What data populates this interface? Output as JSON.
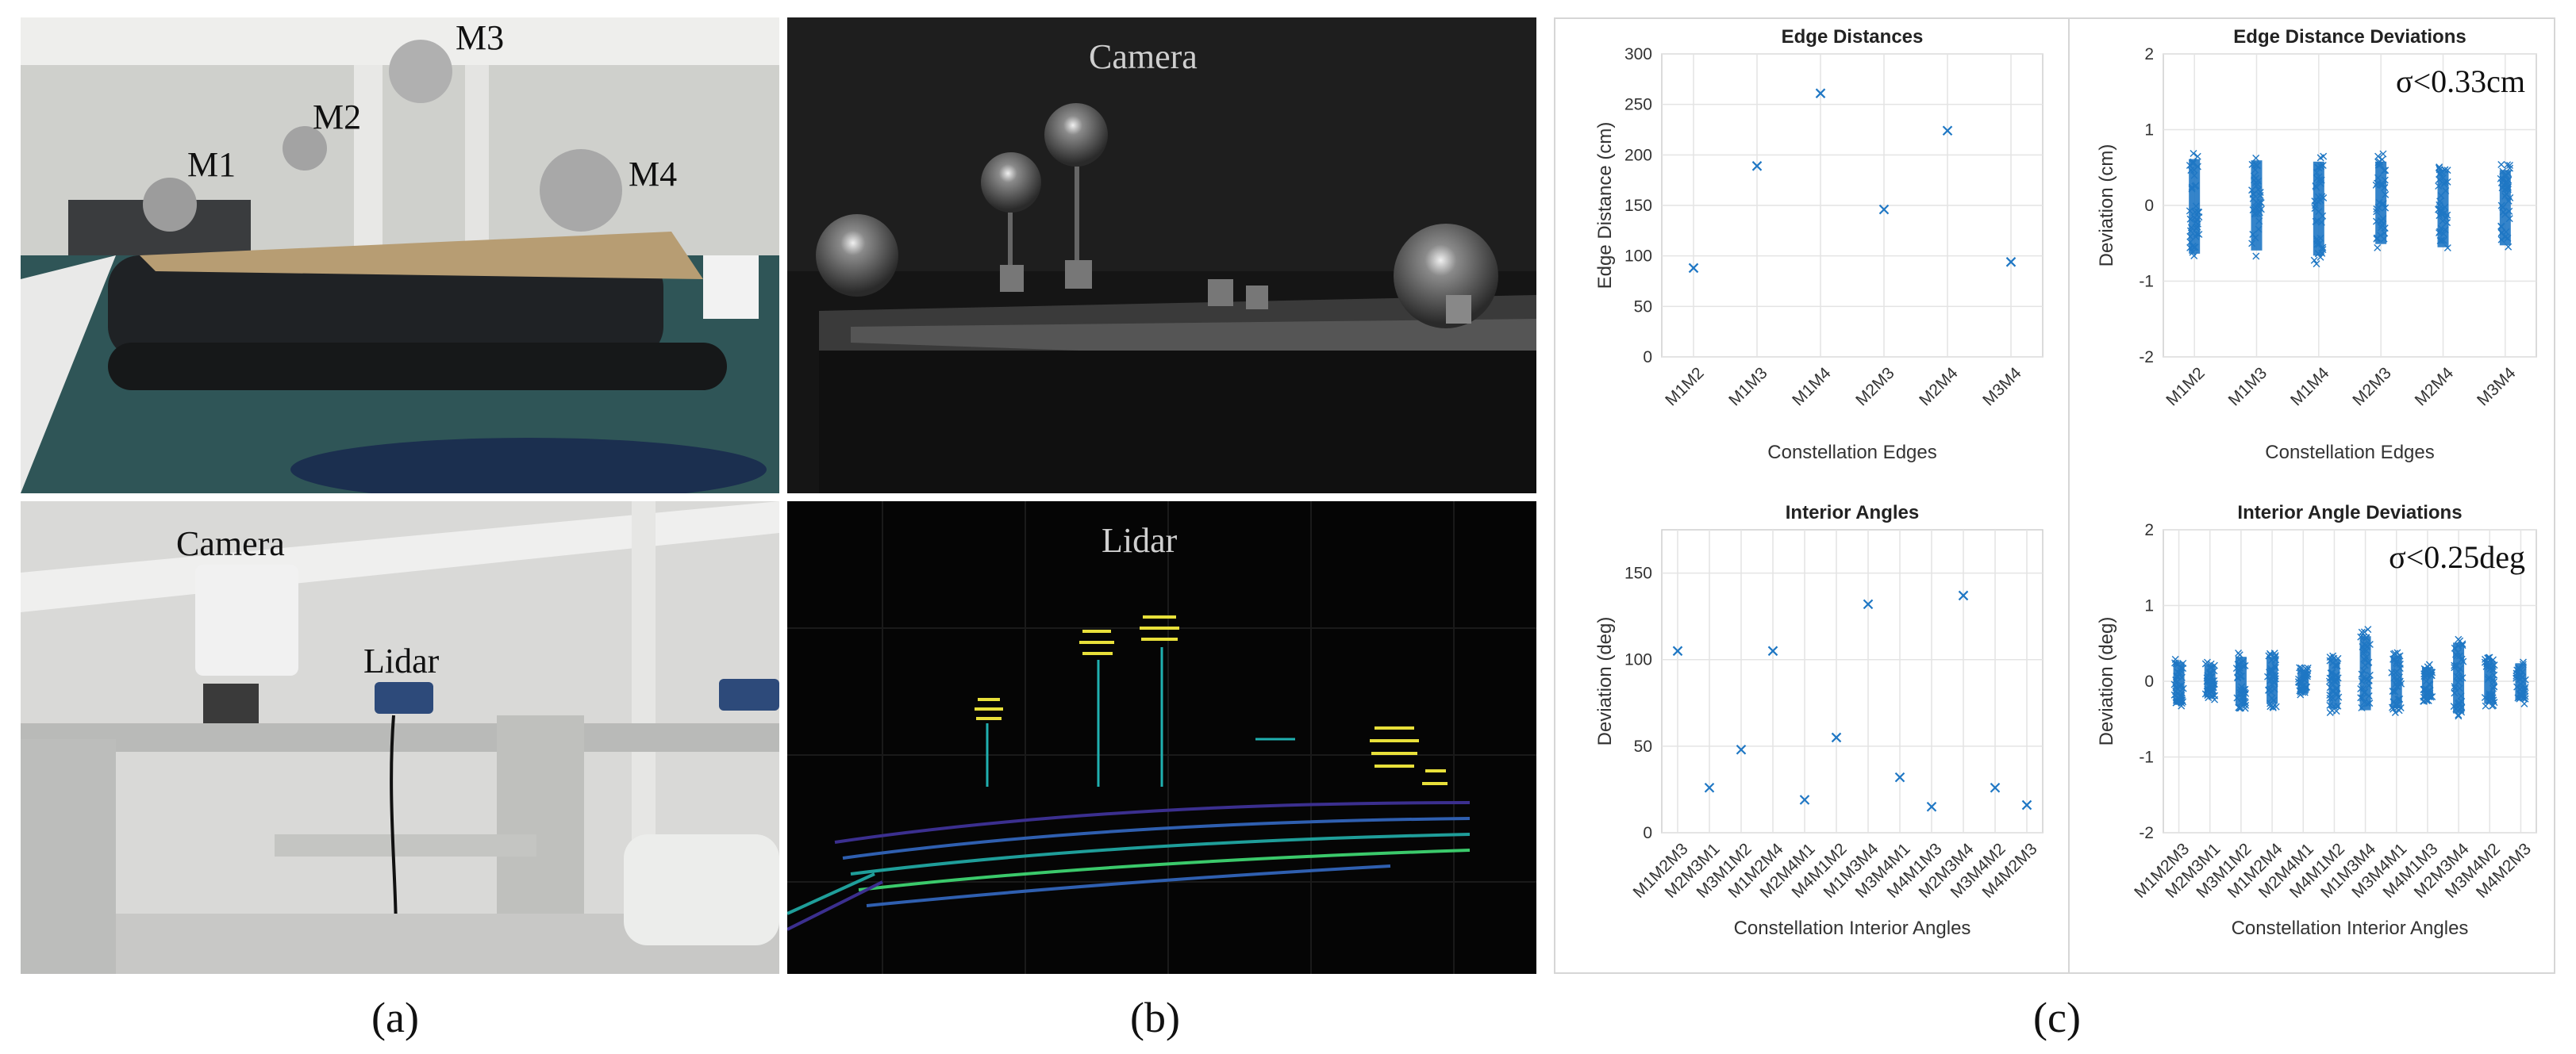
{
  "photos": {
    "a_top": {
      "labels": [
        "M1",
        "M2",
        "M3",
        "M4"
      ]
    },
    "a_bottom": {
      "labels": [
        "Camera",
        "Lidar"
      ]
    },
    "b_top": {
      "label": "Camera"
    },
    "b_bottom": {
      "label": "Lidar"
    }
  },
  "subfig_labels": {
    "a": "(a)",
    "b": "(b)",
    "c": "(c)"
  },
  "chart_data": [
    {
      "type": "scatter",
      "title": "Edge Distances",
      "xlabel": "Constellation Edges",
      "ylabel": "Edge Distance (cm)",
      "categories": [
        "M1M2",
        "M1M3",
        "M1M4",
        "M2M3",
        "M2M4",
        "M3M4"
      ],
      "values": [
        88,
        189,
        261,
        146,
        224,
        94
      ],
      "ylim": [
        0,
        300
      ],
      "yticks": [
        0,
        50,
        100,
        150,
        200,
        250,
        300
      ],
      "grid": true,
      "color": "#1f77c4"
    },
    {
      "type": "scatter",
      "title": "Edge Distance Deviations",
      "xlabel": "Constellation Edges",
      "ylabel": "Deviation (cm)",
      "categories": [
        "M1M2",
        "M1M3",
        "M1M4",
        "M2M3",
        "M2M4",
        "M3M4"
      ],
      "ranges": [
        [
          -0.75,
          0.72
        ],
        [
          -0.7,
          0.7
        ],
        [
          -0.78,
          0.68
        ],
        [
          -0.6,
          0.68
        ],
        [
          -0.65,
          0.55
        ],
        [
          -0.62,
          0.55
        ]
      ],
      "ylim": [
        -2,
        2
      ],
      "yticks": [
        -2,
        -1,
        0,
        1,
        2
      ],
      "annotation": "σ<0.33cm",
      "grid": true,
      "color": "#1f77c4"
    },
    {
      "type": "scatter",
      "title": "Interior Angles",
      "xlabel": "Constellation Interior Angles",
      "ylabel": "Deviation (deg)",
      "categories": [
        "M1M2M3",
        "M2M3M1",
        "M3M1M2",
        "M1M2M4",
        "M2M4M1",
        "M4M1M2",
        "M1M3M4",
        "M3M4M1",
        "M4M1M3",
        "M2M3M4",
        "M3M4M2",
        "M4M2M3"
      ],
      "values": [
        105,
        26,
        48,
        105,
        19,
        55,
        132,
        32,
        15,
        137,
        26,
        16
      ],
      "ylim": [
        0,
        175
      ],
      "yticks": [
        0,
        50,
        100,
        150
      ],
      "grid": true,
      "color": "#1f77c4"
    },
    {
      "type": "scatter",
      "title": "Interior Angle Deviations",
      "xlabel": "Constellation Interior Angles",
      "ylabel": "Deviation (deg)",
      "categories": [
        "M1M2M3",
        "M2M3M1",
        "M3M1M2",
        "M1M2M4",
        "M2M4M1",
        "M4M1M2",
        "M1M3M4",
        "M3M4M1",
        "M4M1M3",
        "M2M3M4",
        "M3M4M2",
        "M4M2M3"
      ],
      "ranges": [
        [
          -0.35,
          0.3
        ],
        [
          -0.25,
          0.25
        ],
        [
          -0.38,
          0.38
        ],
        [
          -0.35,
          0.38
        ],
        [
          -0.18,
          0.18
        ],
        [
          -0.42,
          0.35
        ],
        [
          -0.45,
          0.7
        ],
        [
          -0.42,
          0.4
        ],
        [
          -0.28,
          0.22
        ],
        [
          -0.5,
          0.6
        ],
        [
          -0.35,
          0.32
        ],
        [
          -0.3,
          0.28
        ]
      ],
      "ylim": [
        -2,
        2
      ],
      "yticks": [
        -2,
        -1,
        0,
        1,
        2
      ],
      "annotation": "σ<0.25deg",
      "grid": true,
      "color": "#1f77c4"
    }
  ]
}
